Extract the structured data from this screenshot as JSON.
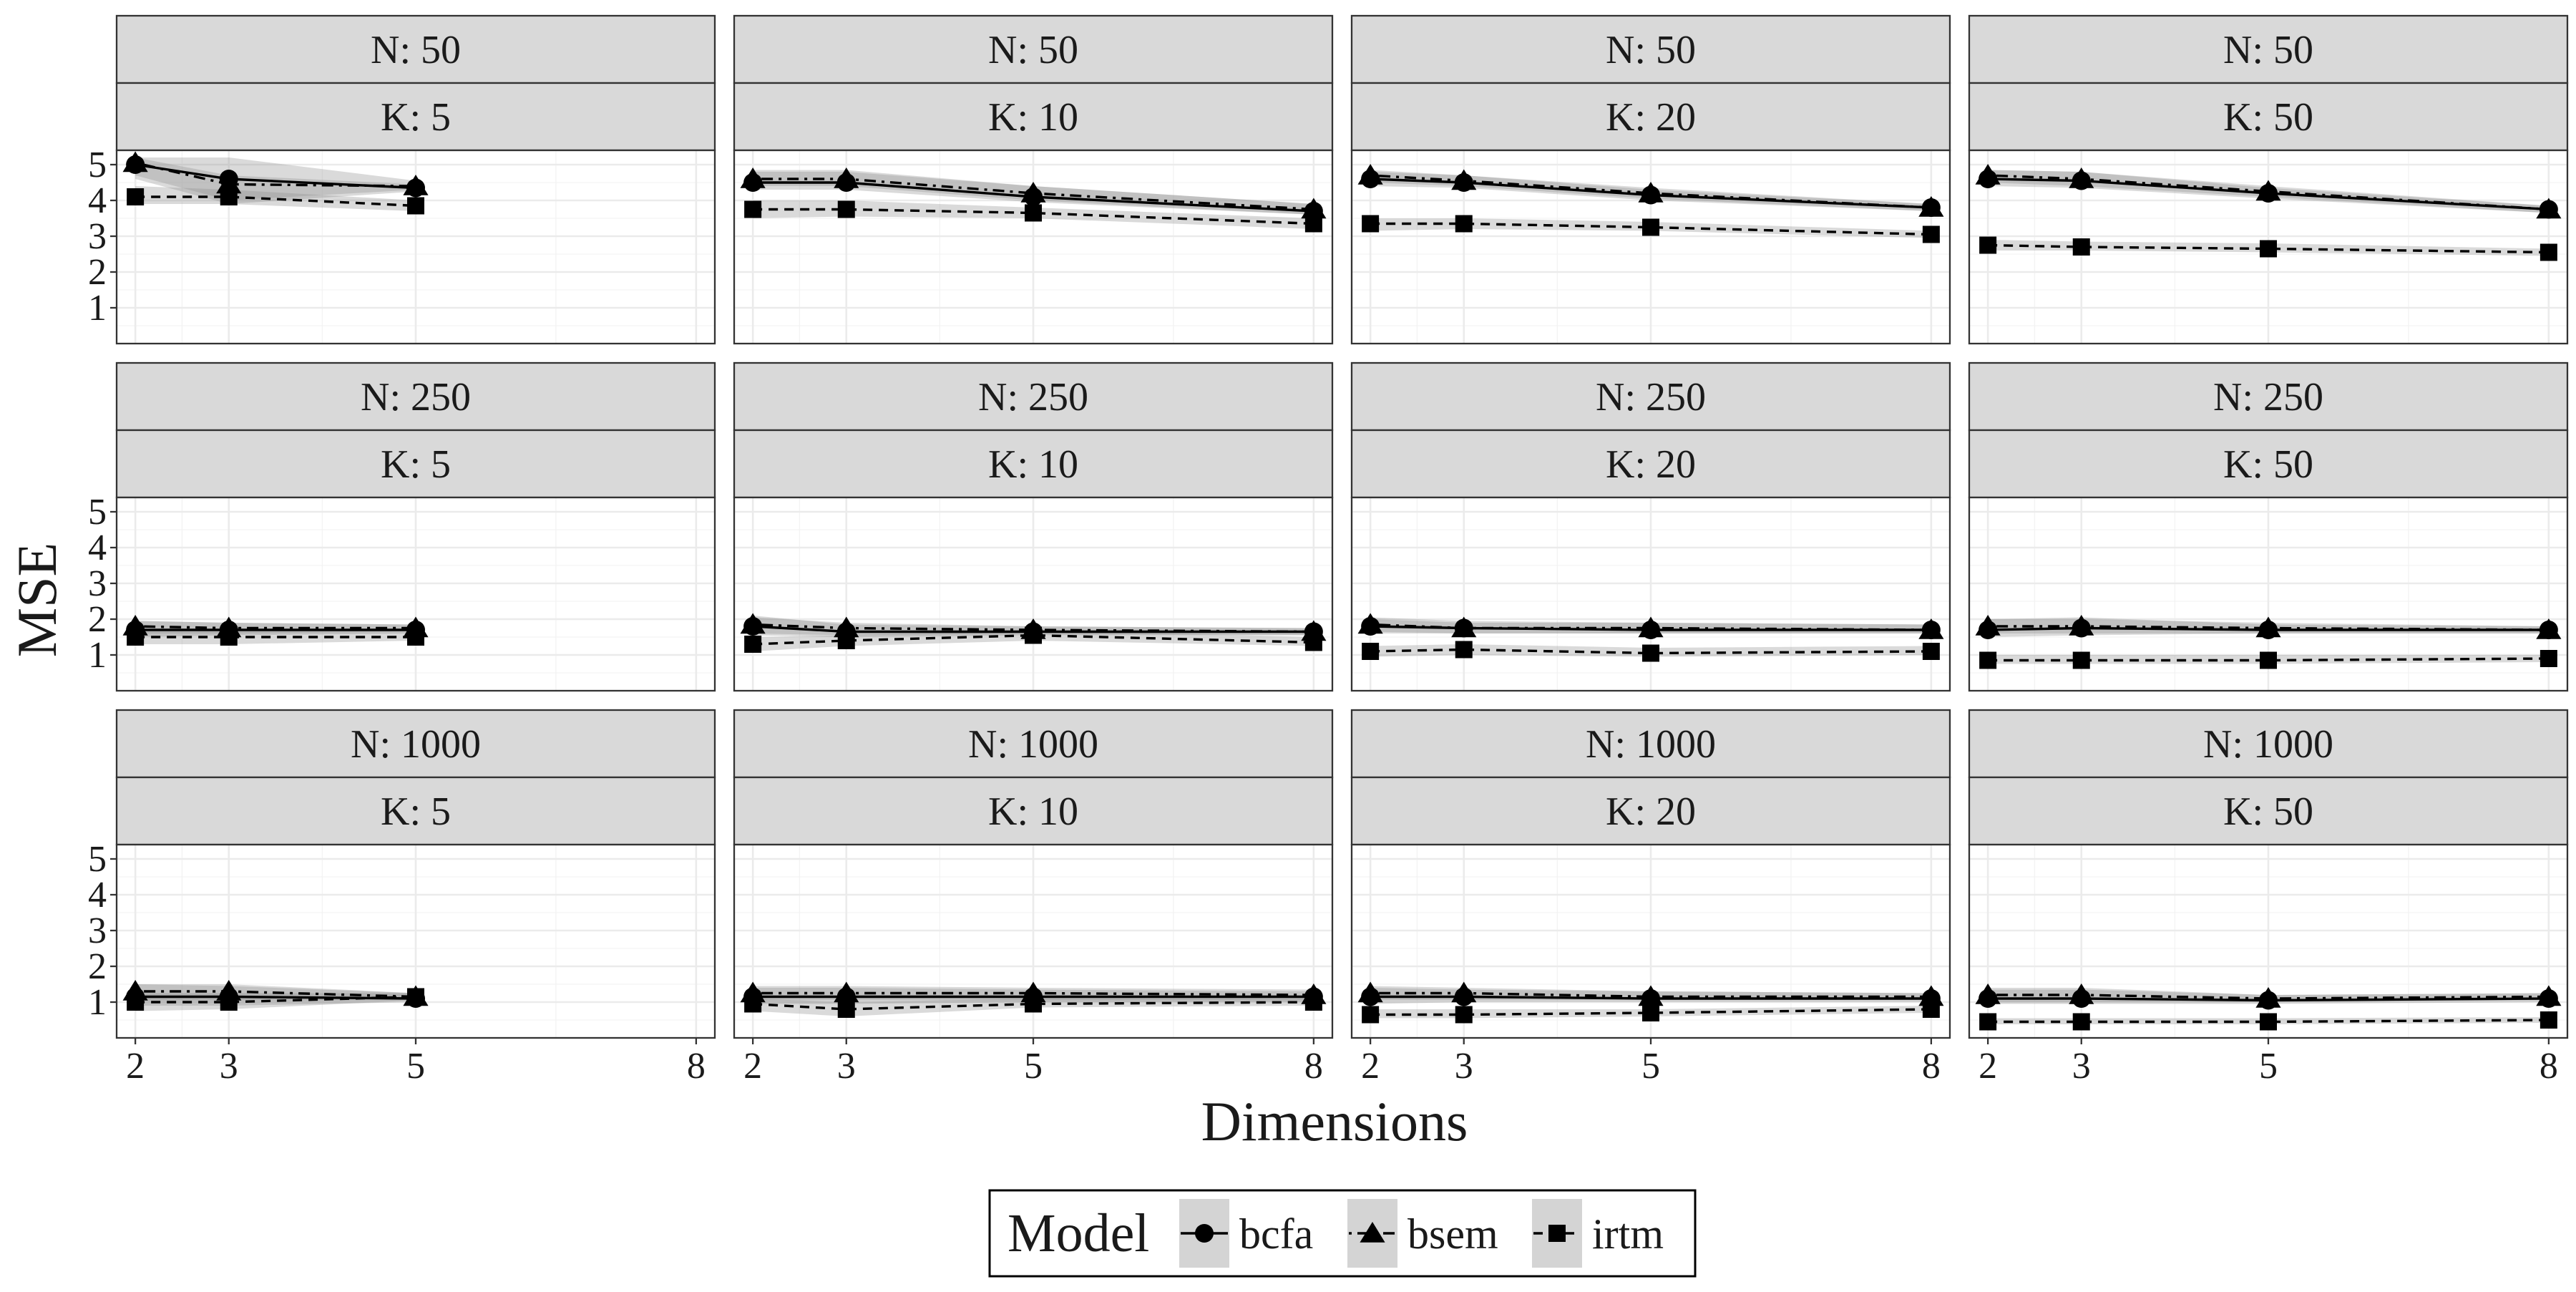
{
  "chart_data": {
    "type": "line",
    "layout": "faceted grid, 3 rows (N) x 4 columns (K)",
    "xlabel": "Dimensions",
    "ylabel": "MSE",
    "x_ticks": [
      2,
      3,
      5,
      8
    ],
    "y_ticks": [
      1,
      2,
      3,
      4,
      5
    ],
    "xlim": [
      1.8,
      8.2
    ],
    "ylim": [
      0,
      5.4
    ],
    "grid": true,
    "legend": {
      "title": "Model",
      "position": "bottom",
      "entries": [
        {
          "name": "bcfa",
          "marker": "circle",
          "linetype": "solid"
        },
        {
          "name": "bsem",
          "marker": "triangle",
          "linetype": "dotdash"
        },
        {
          "name": "irtm",
          "marker": "square",
          "linetype": "dashed"
        }
      ]
    },
    "facets": [
      {
        "row_label": "N: 50",
        "col_label": "K: 5",
        "x": [
          2,
          3,
          5
        ],
        "series": [
          {
            "name": "bcfa",
            "values": [
              5.0,
              4.6,
              4.35
            ],
            "lower": [
              4.6,
              3.9,
              4.25
            ],
            "upper": [
              5.2,
              4.7,
              4.45
            ]
          },
          {
            "name": "bsem",
            "values": [
              5.05,
              4.45,
              4.4
            ],
            "lower": [
              4.7,
              4.0,
              4.3
            ],
            "upper": [
              5.2,
              5.2,
              4.55
            ]
          },
          {
            "name": "irtm",
            "values": [
              4.1,
              4.1,
              3.85
            ],
            "lower": [
              3.9,
              3.9,
              3.7
            ],
            "upper": [
              4.4,
              4.3,
              4.0
            ]
          }
        ]
      },
      {
        "row_label": "N: 50",
        "col_label": "K: 10",
        "x": [
          2,
          3,
          5,
          8
        ],
        "series": [
          {
            "name": "bcfa",
            "values": [
              4.5,
              4.5,
              4.1,
              3.7
            ],
            "lower": [
              4.3,
              4.3,
              3.95,
              3.6
            ],
            "upper": [
              4.85,
              4.85,
              4.4,
              3.9
            ]
          },
          {
            "name": "bsem",
            "values": [
              4.6,
              4.6,
              4.2,
              3.75
            ],
            "lower": [
              4.4,
              4.4,
              4.0,
              3.6
            ],
            "upper": [
              4.8,
              4.8,
              4.4,
              3.9
            ]
          },
          {
            "name": "irtm",
            "values": [
              3.75,
              3.75,
              3.65,
              3.35
            ],
            "lower": [
              3.5,
              3.55,
              3.5,
              3.2
            ],
            "upper": [
              4.0,
              4.0,
              3.8,
              3.5
            ]
          }
        ]
      },
      {
        "row_label": "N: 50",
        "col_label": "K: 20",
        "x": [
          2,
          3,
          5,
          8
        ],
        "series": [
          {
            "name": "bcfa",
            "values": [
              4.6,
              4.5,
              4.15,
              3.8
            ],
            "lower": [
              4.4,
              4.35,
              4.0,
              3.7
            ],
            "upper": [
              4.8,
              4.7,
              4.3,
              3.9
            ]
          },
          {
            "name": "bsem",
            "values": [
              4.7,
              4.55,
              4.2,
              3.8
            ],
            "lower": [
              4.5,
              4.4,
              4.05,
              3.7
            ],
            "upper": [
              4.85,
              4.7,
              4.35,
              3.9
            ]
          },
          {
            "name": "irtm",
            "values": [
              3.35,
              3.35,
              3.25,
              3.05
            ],
            "lower": [
              3.15,
              3.2,
              3.15,
              2.95
            ],
            "upper": [
              3.5,
              3.5,
              3.4,
              3.15
            ]
          }
        ]
      },
      {
        "row_label": "N: 50",
        "col_label": "K: 50",
        "x": [
          2,
          3,
          5,
          8
        ],
        "series": [
          {
            "name": "bcfa",
            "values": [
              4.6,
              4.55,
              4.2,
              3.75
            ],
            "lower": [
              4.4,
              4.35,
              4.05,
              3.65
            ],
            "upper": [
              4.85,
              4.8,
              4.35,
              3.85
            ]
          },
          {
            "name": "bsem",
            "values": [
              4.7,
              4.6,
              4.25,
              3.75
            ],
            "lower": [
              4.5,
              4.4,
              4.1,
              3.65
            ],
            "upper": [
              4.85,
              4.8,
              4.4,
              3.85
            ]
          },
          {
            "name": "irtm",
            "values": [
              2.75,
              2.7,
              2.65,
              2.55
            ],
            "lower": [
              2.6,
              2.6,
              2.55,
              2.45
            ],
            "upper": [
              2.9,
              2.85,
              2.8,
              2.65
            ]
          }
        ]
      },
      {
        "row_label": "N: 250",
        "col_label": "K: 5",
        "x": [
          2,
          3,
          5
        ],
        "series": [
          {
            "name": "bcfa",
            "values": [
              1.7,
              1.7,
              1.7
            ],
            "lower": [
              1.5,
              1.55,
              1.6
            ],
            "upper": [
              1.95,
              1.9,
              1.85
            ]
          },
          {
            "name": "bsem",
            "values": [
              1.8,
              1.75,
              1.75
            ],
            "lower": [
              1.6,
              1.6,
              1.65
            ],
            "upper": [
              1.95,
              1.9,
              1.85
            ]
          },
          {
            "name": "irtm",
            "values": [
              1.5,
              1.5,
              1.5
            ],
            "lower": [
              1.3,
              1.3,
              1.4
            ],
            "upper": [
              1.7,
              1.7,
              1.65
            ]
          }
        ]
      },
      {
        "row_label": "N: 250",
        "col_label": "K: 10",
        "x": [
          2,
          3,
          5,
          8
        ],
        "series": [
          {
            "name": "bcfa",
            "values": [
              1.8,
              1.65,
              1.65,
              1.65
            ],
            "lower": [
              1.55,
              1.5,
              1.55,
              1.55
            ],
            "upper": [
              2.1,
              1.85,
              1.8,
              1.75
            ]
          },
          {
            "name": "bsem",
            "values": [
              1.85,
              1.75,
              1.7,
              1.65
            ],
            "lower": [
              1.6,
              1.55,
              1.6,
              1.55
            ],
            "upper": [
              2.05,
              1.9,
              1.8,
              1.75
            ]
          },
          {
            "name": "irtm",
            "values": [
              1.3,
              1.4,
              1.55,
              1.35
            ],
            "lower": [
              1.1,
              1.25,
              1.4,
              1.25
            ],
            "upper": [
              1.5,
              1.55,
              1.7,
              1.5
            ]
          }
        ]
      },
      {
        "row_label": "N: 250",
        "col_label": "K: 20",
        "x": [
          2,
          3,
          5,
          8
        ],
        "series": [
          {
            "name": "bcfa",
            "values": [
              1.8,
              1.75,
              1.7,
              1.7
            ],
            "lower": [
              1.6,
              1.6,
              1.6,
              1.6
            ],
            "upper": [
              2.05,
              1.95,
              1.9,
              1.85
            ]
          },
          {
            "name": "bsem",
            "values": [
              1.85,
              1.75,
              1.75,
              1.7
            ],
            "lower": [
              1.65,
              1.6,
              1.6,
              1.6
            ],
            "upper": [
              2.0,
              1.9,
              1.9,
              1.85
            ]
          },
          {
            "name": "irtm",
            "values": [
              1.1,
              1.15,
              1.05,
              1.1
            ],
            "lower": [
              0.95,
              1.0,
              0.95,
              1.0
            ],
            "upper": [
              1.25,
              1.3,
              1.2,
              1.25
            ]
          }
        ]
      },
      {
        "row_label": "N: 250",
        "col_label": "K: 50",
        "x": [
          2,
          3,
          5,
          8
        ],
        "series": [
          {
            "name": "bcfa",
            "values": [
              1.7,
              1.75,
              1.7,
              1.7
            ],
            "lower": [
              1.5,
              1.55,
              1.6,
              1.6
            ],
            "upper": [
              2.0,
              2.05,
              1.85,
              1.8
            ]
          },
          {
            "name": "bsem",
            "values": [
              1.8,
              1.8,
              1.75,
              1.7
            ],
            "lower": [
              1.6,
              1.6,
              1.6,
              1.6
            ],
            "upper": [
              2.0,
              2.0,
              1.9,
              1.8
            ]
          },
          {
            "name": "irtm",
            "values": [
              0.85,
              0.85,
              0.85,
              0.9
            ],
            "lower": [
              0.75,
              0.75,
              0.75,
              0.8
            ],
            "upper": [
              1.0,
              1.0,
              1.0,
              1.0
            ]
          }
        ]
      },
      {
        "row_label": "N: 1000",
        "col_label": "K: 5",
        "x": [
          2,
          3,
          5
        ],
        "series": [
          {
            "name": "bcfa",
            "values": [
              1.15,
              1.15,
              1.1
            ],
            "lower": [
              0.9,
              0.9,
              1.0
            ],
            "upper": [
              1.5,
              1.45,
              1.25
            ]
          },
          {
            "name": "bsem",
            "values": [
              1.3,
              1.3,
              1.15
            ],
            "lower": [
              1.05,
              1.05,
              1.05
            ],
            "upper": [
              1.5,
              1.5,
              1.25
            ]
          },
          {
            "name": "irtm",
            "values": [
              1.0,
              1.0,
              1.15
            ],
            "lower": [
              0.75,
              0.8,
              1.05
            ],
            "upper": [
              1.25,
              1.25,
              1.25
            ]
          }
        ]
      },
      {
        "row_label": "N: 1000",
        "col_label": "K: 10",
        "x": [
          2,
          3,
          5,
          8
        ],
        "series": [
          {
            "name": "bcfa",
            "values": [
              1.15,
              1.15,
              1.15,
              1.15
            ],
            "lower": [
              0.95,
              0.95,
              1.0,
              1.0
            ],
            "upper": [
              1.4,
              1.4,
              1.35,
              1.3
            ]
          },
          {
            "name": "bsem",
            "values": [
              1.25,
              1.25,
              1.25,
              1.2
            ],
            "lower": [
              1.05,
              1.05,
              1.05,
              1.05
            ],
            "upper": [
              1.45,
              1.45,
              1.4,
              1.35
            ]
          },
          {
            "name": "irtm",
            "values": [
              0.95,
              0.8,
              0.95,
              1.0
            ],
            "lower": [
              0.75,
              0.6,
              0.85,
              0.9
            ],
            "upper": [
              1.1,
              1.0,
              1.1,
              1.1
            ]
          }
        ]
      },
      {
        "row_label": "N: 1000",
        "col_label": "K: 20",
        "x": [
          2,
          3,
          5,
          8
        ],
        "series": [
          {
            "name": "bcfa",
            "values": [
              1.15,
              1.15,
              1.1,
              1.1
            ],
            "lower": [
              0.95,
              1.0,
              1.0,
              1.0
            ],
            "upper": [
              1.4,
              1.35,
              1.3,
              1.25
            ]
          },
          {
            "name": "bsem",
            "values": [
              1.25,
              1.25,
              1.15,
              1.15
            ],
            "lower": [
              1.05,
              1.05,
              1.05,
              1.05
            ],
            "upper": [
              1.45,
              1.4,
              1.3,
              1.25
            ]
          },
          {
            "name": "irtm",
            "values": [
              0.65,
              0.65,
              0.7,
              0.8
            ],
            "lower": [
              0.55,
              0.55,
              0.6,
              0.7
            ],
            "upper": [
              0.8,
              0.8,
              0.8,
              0.9
            ]
          }
        ]
      },
      {
        "row_label": "N: 1000",
        "col_label": "K: 50",
        "x": [
          2,
          3,
          5,
          8
        ],
        "series": [
          {
            "name": "bcfa",
            "values": [
              1.1,
              1.1,
              1.05,
              1.1
            ],
            "lower": [
              0.95,
              0.95,
              0.95,
              1.0
            ],
            "upper": [
              1.35,
              1.35,
              1.2,
              1.25
            ]
          },
          {
            "name": "bsem",
            "values": [
              1.2,
              1.2,
              1.1,
              1.15
            ],
            "lower": [
              1.0,
              1.0,
              1.0,
              1.05
            ],
            "upper": [
              1.4,
              1.4,
              1.2,
              1.25
            ]
          },
          {
            "name": "irtm",
            "values": [
              0.45,
              0.45,
              0.45,
              0.5
            ],
            "lower": [
              0.38,
              0.38,
              0.38,
              0.42
            ],
            "upper": [
              0.55,
              0.55,
              0.55,
              0.58
            ]
          }
        ]
      }
    ]
  }
}
